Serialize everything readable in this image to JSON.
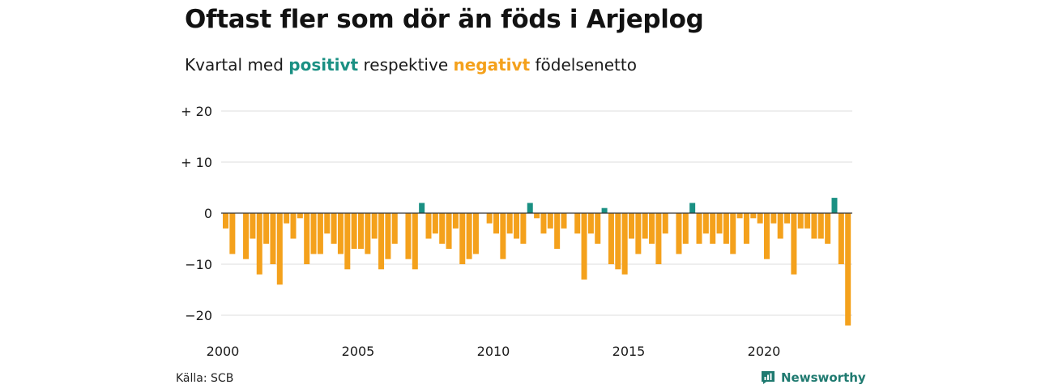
{
  "chart_data": {
    "type": "bar",
    "title": "Oftast fler som dör än föds i Arjeplog",
    "subtitle": {
      "prefix": "Kvartal med",
      "positive_label": "positivt",
      "middle": "respektive",
      "negative_label": "negativt",
      "suffix": "födelsenetto"
    },
    "x_start": 2000,
    "x_tick_labels": [
      "2000",
      "2005",
      "2010",
      "2015",
      "2020"
    ],
    "x_tick_values": [
      2000,
      2005,
      2010,
      2015,
      2020
    ],
    "y_tick_labels": [
      "+ 20",
      "+ 10",
      "0",
      "−10",
      "−20"
    ],
    "y_tick_values": [
      20,
      10,
      0,
      -10,
      -20
    ],
    "ylim": [
      -22,
      20
    ],
    "grid": true,
    "colors": {
      "positive": "#1a9083",
      "negative": "#f4a11c",
      "grid": "#dcdcdc",
      "zero_line": "#333333"
    },
    "values": [
      -3,
      -8,
      0,
      -9,
      -5,
      -12,
      -6,
      -10,
      -14,
      -2,
      -5,
      -1,
      -10,
      -8,
      -8,
      -4,
      -6,
      -8,
      -11,
      -7,
      -7,
      -8,
      -5,
      -11,
      -9,
      -6,
      0,
      -9,
      -11,
      2,
      -5,
      -4,
      -6,
      -7,
      -3,
      -10,
      -9,
      -8,
      0,
      -2,
      -4,
      -9,
      -4,
      -5,
      -6,
      2,
      -1,
      -4,
      -3,
      -7,
      -3,
      0,
      -4,
      -13,
      -4,
      -6,
      1,
      -10,
      -11,
      -12,
      -5,
      -8,
      -5,
      -6,
      -10,
      -4,
      0,
      -8,
      -6,
      2,
      -6,
      -4,
      -6,
      -4,
      -6,
      -8,
      -1,
      -6,
      -1,
      -2,
      -9,
      -2,
      -5,
      -2,
      -12,
      -3,
      -3,
      -5,
      -5,
      -6,
      3,
      -10,
      -22
    ]
  },
  "source": "Källa: SCB",
  "brand": "Newsworthy"
}
